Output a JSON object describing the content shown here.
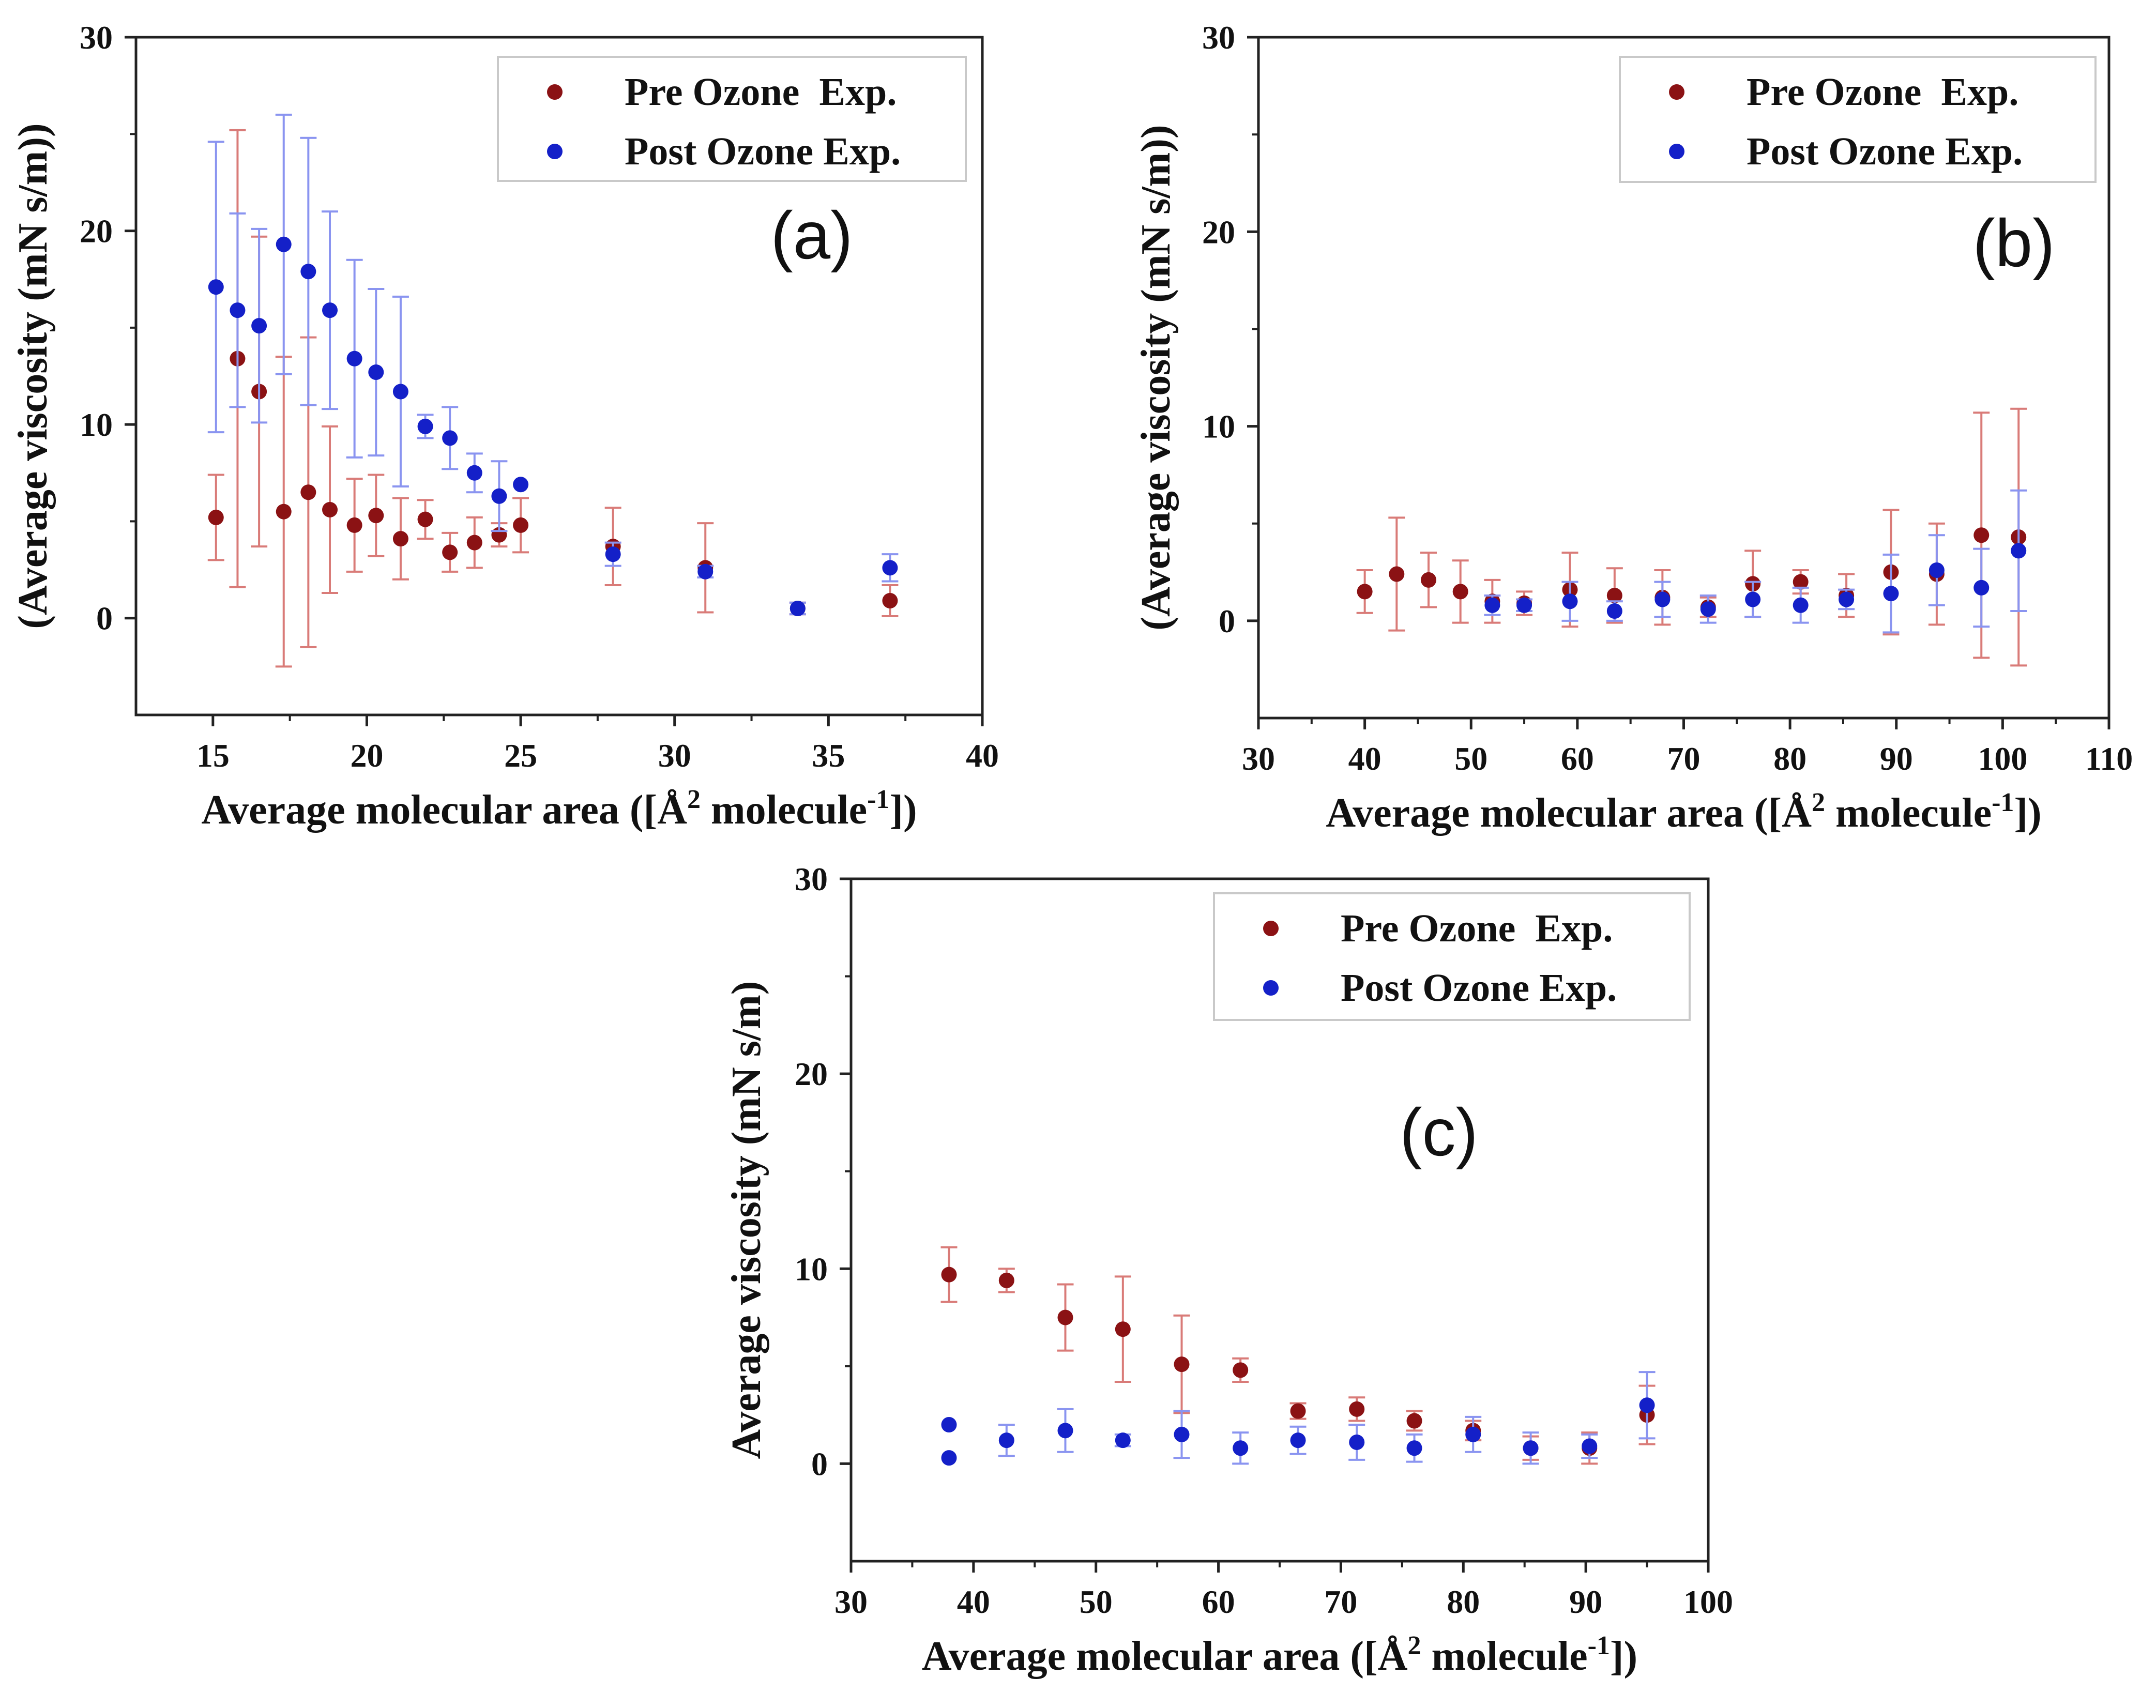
{
  "colors": {
    "pre": "#8b1214",
    "post": "#1420c8",
    "pre_err": "#d97b78",
    "post_err": "#8a94f0",
    "axis": "#222222",
    "legend_border": "#c9c9c9"
  },
  "chart_data": [
    {
      "type": "scatter",
      "panel_label": "(a)",
      "xlabel_main": "Average molecular area ([Å",
      "xlabel_sup1": "2",
      "xlabel_mid": " molecule",
      "xlabel_sup2": "-1",
      "xlabel_end": "])",
      "ylabel": "(Average viscosity (mN s/m))",
      "xlim": [
        12.5,
        40
      ],
      "ylim": [
        -5,
        30
      ],
      "xticks": [
        15,
        20,
        25,
        30,
        35,
        40
      ],
      "yticks": [
        0,
        10,
        20,
        30
      ],
      "legend": [
        "Pre Ozone  Exp.",
        "Post Ozone Exp."
      ],
      "series": [
        {
          "name": "Pre Ozone  Exp.",
          "x": [
            15.1,
            15.8,
            16.5,
            17.3,
            18.1,
            18.8,
            19.6,
            20.3,
            21.1,
            21.9,
            22.7,
            23.5,
            24.3,
            25.0,
            28.0,
            31.0,
            34.0,
            37.0
          ],
          "y": [
            5.2,
            13.4,
            11.7,
            5.5,
            6.5,
            5.6,
            4.8,
            5.3,
            4.1,
            5.1,
            3.4,
            3.9,
            4.3,
            4.8,
            3.7,
            2.6,
            0.5,
            0.9
          ],
          "err": [
            2.2,
            11.8,
            8.0,
            8.0,
            8.0,
            4.3,
            2.4,
            2.1,
            2.1,
            1.0,
            1.0,
            1.3,
            0.6,
            1.4,
            2.0,
            2.3,
            0.3,
            0.8
          ]
        },
        {
          "name": "Post Ozone Exp.",
          "x": [
            15.1,
            15.8,
            16.5,
            17.3,
            18.1,
            18.8,
            19.6,
            20.3,
            21.1,
            21.9,
            22.7,
            23.5,
            24.3,
            25.0,
            28.0,
            31.0,
            34.0,
            37.0
          ],
          "y": [
            17.1,
            15.9,
            15.1,
            19.3,
            17.9,
            15.9,
            13.4,
            12.7,
            11.7,
            9.9,
            9.3,
            7.5,
            6.3,
            6.9,
            3.3,
            2.4,
            0.5,
            2.6
          ],
          "err": [
            7.5,
            5.0,
            5.0,
            6.7,
            6.9,
            5.1,
            5.1,
            4.3,
            4.9,
            0.6,
            1.6,
            1.0,
            1.8,
            0,
            0.6,
            0.3,
            0.3,
            0.7
          ]
        }
      ]
    },
    {
      "type": "scatter",
      "panel_label": "(b)",
      "xlabel_main": "Average molecular area ([Å",
      "xlabel_sup1": "2",
      "xlabel_mid": " molecule",
      "xlabel_sup2": "-1",
      "xlabel_end": "])",
      "ylabel": "(Average viscosity (mN s/m))",
      "xlim": [
        30,
        110
      ],
      "ylim": [
        -5,
        30
      ],
      "xticks": [
        30,
        40,
        50,
        60,
        70,
        80,
        90,
        100,
        110
      ],
      "yticks": [
        0,
        10,
        20,
        30
      ],
      "legend": [
        "Pre Ozone  Exp.",
        "Post Ozone Exp."
      ],
      "series": [
        {
          "name": "Pre Ozone  Exp.",
          "x": [
            40,
            43,
            46,
            49,
            52,
            55,
            59.3,
            63.5,
            68,
            72.3,
            76.5,
            81,
            85.3,
            89.5,
            93.8,
            98,
            101.5
          ],
          "y": [
            1.5,
            2.4,
            2.1,
            1.5,
            1.0,
            0.9,
            1.6,
            1.3,
            1.2,
            0.7,
            1.9,
            2.0,
            1.3,
            2.5,
            2.4,
            4.4,
            4.3
          ],
          "err": [
            1.1,
            2.9,
            1.4,
            1.6,
            1.1,
            0.6,
            1.9,
            1.4,
            1.4,
            0.5,
            1.7,
            0.6,
            1.1,
            3.2,
            2.6,
            6.3,
            6.6
          ]
        },
        {
          "name": "Post Ozone Exp.",
          "x": [
            52,
            55,
            59.3,
            63.5,
            68,
            72.3,
            76.5,
            81,
            85.3,
            89.5,
            93.8,
            98,
            101.5
          ],
          "y": [
            0.8,
            0.8,
            1.0,
            0.5,
            1.1,
            0.6,
            1.1,
            0.8,
            1.1,
            1.4,
            2.6,
            1.7,
            3.6
          ],
          "err": [
            0.5,
            0.3,
            1.0,
            0.5,
            0.9,
            0.7,
            0.9,
            0.9,
            0.5,
            2.0,
            1.8,
            2.0,
            3.1
          ]
        }
      ]
    },
    {
      "type": "scatter",
      "panel_label": "(c)",
      "xlabel_main": "Average molecular area ([Å",
      "xlabel_sup1": "2",
      "xlabel_mid": " molecule",
      "xlabel_sup2": "-1",
      "xlabel_end": "])",
      "ylabel": "Average viscosity (mN s/m)",
      "xlim": [
        30,
        100
      ],
      "ylim": [
        -5,
        30
      ],
      "xticks": [
        30,
        40,
        50,
        60,
        70,
        80,
        90,
        100
      ],
      "yticks": [
        0,
        10,
        20,
        30
      ],
      "legend": [
        "Pre Ozone  Exp.",
        "Post Ozone Exp."
      ],
      "series": [
        {
          "name": "Pre Ozone  Exp.",
          "x": [
            38,
            42.7,
            47.5,
            52.2,
            57,
            61.8,
            66.5,
            71.3,
            76,
            80.8,
            85.5,
            90.3,
            95
          ],
          "y": [
            9.7,
            9.4,
            7.5,
            6.9,
            5.1,
            4.8,
            2.7,
            2.8,
            2.2,
            1.7,
            0.8,
            0.8,
            2.5
          ],
          "err": [
            1.4,
            0.6,
            1.7,
            2.7,
            2.5,
            0.6,
            0.4,
            0.6,
            0.5,
            0.5,
            0.6,
            0.8,
            1.5
          ]
        },
        {
          "name": "Post Ozone Exp.",
          "x": [
            38,
            38,
            42.7,
            47.5,
            52.2,
            57,
            61.8,
            66.5,
            71.3,
            76,
            80.8,
            85.5,
            90.3,
            95
          ],
          "y": [
            2.0,
            0.3,
            1.2,
            1.7,
            1.2,
            1.5,
            0.8,
            1.2,
            1.1,
            0.8,
            1.5,
            0.8,
            0.9,
            3.0
          ],
          "err": [
            0,
            0,
            0.8,
            1.1,
            0.3,
            1.2,
            0.8,
            0.7,
            0.9,
            0.7,
            0.9,
            0.8,
            0.6,
            1.7
          ]
        }
      ]
    }
  ]
}
